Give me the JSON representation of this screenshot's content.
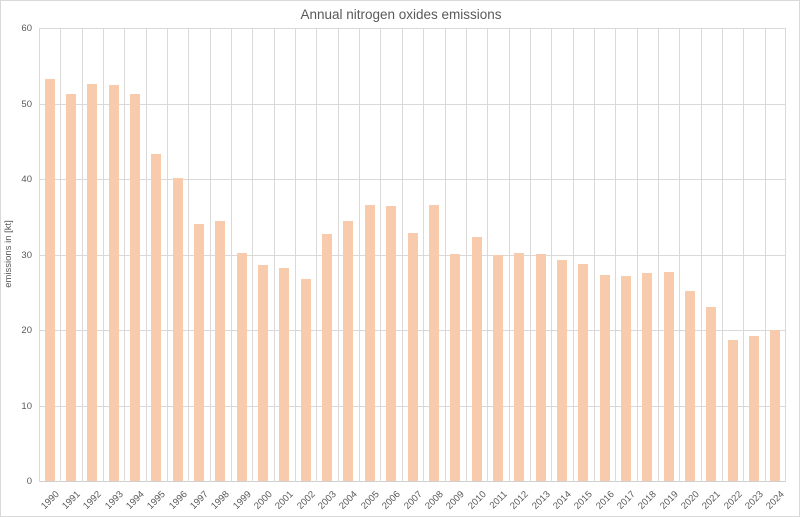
{
  "chart_data": {
    "type": "bar",
    "title": "Annual nitrogen oxides emissions",
    "xlabel": "",
    "ylabel": "emissions in [kt]",
    "categories": [
      "1990",
      "1991",
      "1992",
      "1993",
      "1994",
      "1995",
      "1996",
      "1997",
      "1998",
      "1999",
      "2000",
      "2001",
      "2002",
      "2003",
      "2004",
      "2005",
      "2006",
      "2007",
      "2008",
      "2009",
      "2010",
      "2011",
      "2012",
      "2013",
      "2014",
      "2015",
      "2016",
      "2017",
      "2018",
      "2019",
      "2020",
      "2021",
      "2022",
      "2023",
      "2024"
    ],
    "values": [
      53.3,
      51.3,
      52.6,
      52.4,
      51.3,
      43.3,
      40.1,
      34.0,
      34.4,
      30.2,
      28.6,
      28.2,
      26.8,
      32.7,
      34.5,
      36.6,
      36.4,
      32.8,
      36.5,
      30.1,
      32.3,
      30.0,
      30.2,
      30.1,
      29.3,
      28.8,
      27.3,
      27.2,
      27.6,
      27.7,
      25.2,
      23.1,
      18.7,
      19.2,
      20.0
    ],
    "ylim": [
      0,
      60
    ],
    "ytick_step": 10,
    "ytick_labels": [
      "0",
      "10",
      "20",
      "30",
      "40",
      "50",
      "60"
    ],
    "grid": "horizontal-and-vertical",
    "legend_position": "none",
    "bar_color": "#f8cbad",
    "gridline_color": "#d9d9d9",
    "text_color": "#595959",
    "background_color": "#ffffff"
  }
}
